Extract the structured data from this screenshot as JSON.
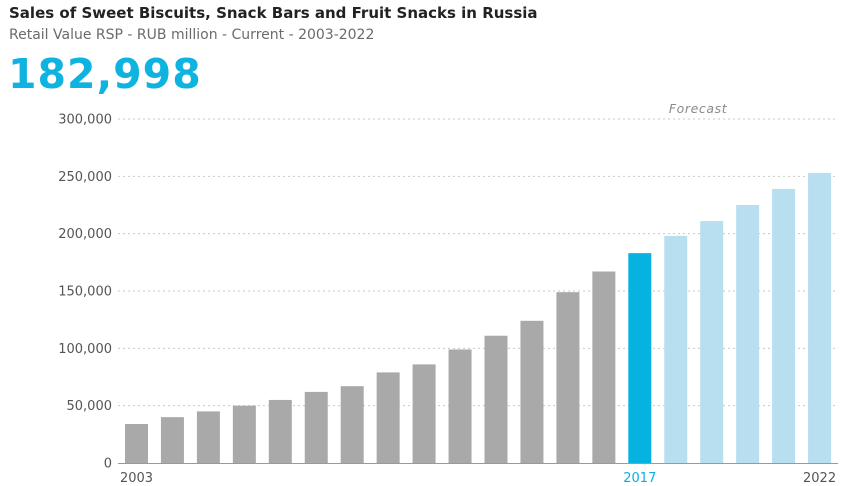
{
  "header": {
    "title": "Sales of Sweet Biscuits, Snack Bars and Fruit Snacks in Russia",
    "subtitle": "Retail Value RSP - RUB million - Current - 2003-2022",
    "headline_value": "182,998"
  },
  "colors": {
    "headline": "#0fb3df",
    "historical": "#a9a9a9",
    "current": "#06b2e0",
    "forecast": "#b8dff0",
    "grid": "#c9c9c9",
    "axis": "#9a9a9a"
  },
  "chart_data": {
    "type": "bar",
    "title": "Sales of Sweet Biscuits, Snack Bars and Fruit Snacks in Russia",
    "subtitle": "Retail Value RSP - RUB million - Current - 2003-2022",
    "categories": [
      "2003",
      "2004",
      "2005",
      "2006",
      "2007",
      "2008",
      "2009",
      "2010",
      "2011",
      "2012",
      "2013",
      "2014",
      "2015",
      "2016",
      "2017",
      "2018",
      "2019",
      "2020",
      "2021",
      "2022"
    ],
    "values": [
      34000,
      40000,
      45000,
      50000,
      55000,
      62000,
      67000,
      79000,
      86000,
      99000,
      111000,
      124000,
      149000,
      167000,
      182998,
      198000,
      211000,
      225000,
      239000,
      253000
    ],
    "segments": {
      "historical": [
        2003,
        2016
      ],
      "current": 2017,
      "forecast": [
        2018,
        2022
      ]
    },
    "x_tick_labels": [
      "2003",
      "2017",
      "2022"
    ],
    "y_ticks": [
      0,
      50000,
      100000,
      150000,
      200000,
      250000,
      300000
    ],
    "y_tick_labels": [
      "0",
      "50,000",
      "100,000",
      "150,000",
      "200,000",
      "250,000",
      "300,000"
    ],
    "ylim": [
      0,
      300000
    ],
    "annotation": "Forecast",
    "grid": true,
    "legend": "none"
  }
}
